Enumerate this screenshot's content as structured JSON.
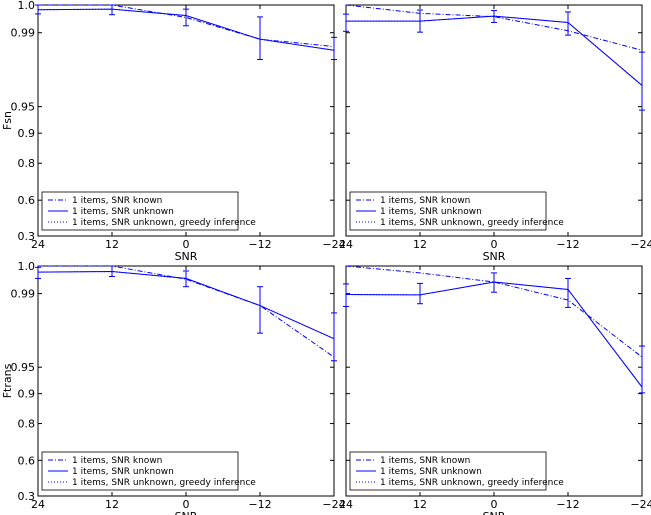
{
  "chart_data": [
    {
      "type": "line",
      "panel": "top-left",
      "xlabel": "SNR",
      "ylabel": "Fsn",
      "x": [
        24,
        12,
        0,
        -12,
        -24
      ],
      "x_tick_labels": [
        "24",
        "12",
        "0",
        "−12",
        "−24"
      ],
      "x_reversed": true,
      "y_ticks": [
        0.3,
        0.6,
        0.8,
        0.9,
        0.95,
        0.99,
        1.0
      ],
      "y_tick_labels": [
        "0.3",
        "0.6",
        "0.8",
        "0.9",
        "0.95",
        "0.99",
        "1.0"
      ],
      "y_scale": "upper-compressed",
      "legend_position": "lower-left",
      "series": [
        {
          "name": "1 items, SNR known",
          "style": "dashdot",
          "values": [
            1.0,
            1.0,
            0.9955,
            0.9865,
            0.9825
          ]
        },
        {
          "name": "1 items, SNR unknown",
          "style": "solid",
          "values": [
            0.9983,
            0.9985,
            0.9962,
            0.9865,
            0.9805
          ],
          "err_low": [
            0.9968,
            0.9965,
            0.9925,
            0.9755,
            0.9755
          ],
          "err_high": [
            1.0,
            1.0,
            0.9985,
            0.9957,
            0.9875
          ]
        },
        {
          "name": "1 items, SNR unknown, greedy inference",
          "style": "dotted",
          "values": [
            0.9983,
            0.9985,
            0.9962,
            0.9865,
            0.9805
          ]
        }
      ]
    },
    {
      "type": "line",
      "panel": "top-right",
      "xlabel": "SNR",
      "ylabel": "",
      "x": [
        24,
        12,
        0,
        -12,
        -24
      ],
      "x_tick_labels": [
        "24",
        "12",
        "0",
        "−12",
        "−24"
      ],
      "x_reversed": true,
      "y_ticks": [
        0.3,
        0.6,
        0.8,
        0.9,
        0.95,
        0.99,
        1.0
      ],
      "y_tick_labels": [
        "",
        "",
        "",
        "",
        "",
        "",
        ""
      ],
      "y_scale": "upper-compressed",
      "legend_position": "lower-left",
      "series": [
        {
          "name": "1 items, SNR known",
          "style": "dashdot",
          "values": [
            1.0,
            0.997,
            0.9958,
            0.9907,
            0.9805
          ]
        },
        {
          "name": "1 items, SNR unknown",
          "style": "solid",
          "values": [
            0.9942,
            0.9942,
            0.996,
            0.9937,
            0.9615
          ],
          "err_low": [
            0.9905,
            0.9902,
            0.9937,
            0.9887,
            0.9435
          ],
          "err_high": [
            0.9967,
            0.9982,
            0.998,
            0.9975,
            0.9795
          ]
        },
        {
          "name": "1 items, SNR unknown, greedy inference",
          "style": "dotted",
          "values": [
            0.9942,
            0.9942,
            0.996,
            0.9937,
            0.9615
          ]
        }
      ]
    },
    {
      "type": "line",
      "panel": "bottom-left",
      "xlabel": "SNR",
      "ylabel": "Ftrans",
      "x": [
        24,
        12,
        0,
        -12,
        -24
      ],
      "x_tick_labels": [
        "24",
        "12",
        "0",
        "−12",
        "−24"
      ],
      "x_reversed": true,
      "y_ticks": [
        0.3,
        0.6,
        0.8,
        0.9,
        0.95,
        0.99,
        1.0
      ],
      "y_tick_labels": [
        "0.3",
        "0.6",
        "0.8",
        "0.9",
        "0.95",
        "0.99",
        "1.0"
      ],
      "y_scale": "upper-compressed",
      "legend_position": "lower-left",
      "series": [
        {
          "name": "1 items, SNR known",
          "style": "dashdot",
          "values": [
            1.0,
            1.0,
            0.9952,
            0.9835,
            0.9555
          ]
        },
        {
          "name": "1 items, SNR unknown",
          "style": "solid",
          "values": [
            0.9978,
            0.998,
            0.9955,
            0.9835,
            0.9655
          ],
          "err_low": [
            0.9955,
            0.9962,
            0.9925,
            0.9685,
            0.9535
          ],
          "err_high": [
            0.9995,
            1.0,
            0.9982,
            0.9925,
            0.9795
          ]
        },
        {
          "name": "1 items, SNR unknown, greedy inference",
          "style": "dotted",
          "values": [
            0.9978,
            0.998,
            0.9955,
            0.9835,
            0.9655
          ]
        }
      ]
    },
    {
      "type": "line",
      "panel": "bottom-right",
      "xlabel": "SNR",
      "ylabel": "",
      "x": [
        24,
        12,
        0,
        -12,
        -24
      ],
      "x_tick_labels": [
        "24",
        "12",
        "0",
        "−12",
        "−24"
      ],
      "x_reversed": true,
      "y_ticks": [
        0.3,
        0.6,
        0.8,
        0.9,
        0.95,
        0.99,
        1.0
      ],
      "y_tick_labels": [
        "",
        "",
        "",
        "",
        "",
        "",
        ""
      ],
      "y_scale": "upper-compressed",
      "legend_position": "lower-left",
      "series": [
        {
          "name": "1 items, SNR known",
          "style": "dashdot",
          "values": [
            1.0,
            0.9975,
            0.9942,
            0.9865,
            0.9555
          ]
        },
        {
          "name": "1 items, SNR unknown",
          "style": "solid",
          "values": [
            0.9895,
            0.9893,
            0.9942,
            0.9915,
            0.9125
          ],
          "err_low": [
            0.983,
            0.9845,
            0.9905,
            0.9825,
            0.9015
          ],
          "err_high": [
            0.9935,
            0.9937,
            0.9975,
            0.9955,
            0.9615
          ]
        },
        {
          "name": "1 items, SNR unknown, greedy inference",
          "style": "dotted",
          "values": [
            0.9895,
            0.9893,
            0.9942,
            0.9915,
            0.9125
          ]
        }
      ]
    }
  ]
}
